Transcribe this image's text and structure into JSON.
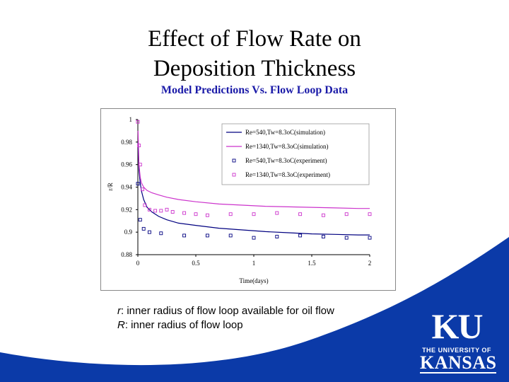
{
  "slide": {
    "title_line1": "Effect of Flow Rate on",
    "title_line2": "Deposition Thickness",
    "subtitle": "Model Predictions Vs. Flow Loop Data",
    "caption_r_symbol": "r",
    "caption_r_text": ": inner radius of flow loop available for oil flow",
    "caption_R_symbol": "R",
    "caption_R_text": ": inner radius of flow loop"
  },
  "logo": {
    "mark": "KU",
    "line1": "THE UNIVERSITY OF",
    "line2": "KANSAS"
  },
  "colors": {
    "swoosh": "#0b3aa8",
    "subtitle": "#1a1aa8",
    "series_re540": "#000080",
    "series_re1340": "#cc33cc"
  },
  "chart_data": {
    "type": "line",
    "xlabel": "Time(days)",
    "ylabel": "r/R",
    "xlim": [
      0,
      2
    ],
    "ylim": [
      0.88,
      1.0
    ],
    "xticks": [
      0,
      0.5,
      1,
      1.5,
      2
    ],
    "xtick_labels": [
      "0",
      "0.5",
      "1",
      "1.5",
      "2"
    ],
    "yticks": [
      0.88,
      0.9,
      0.92,
      0.94,
      0.96,
      0.98,
      1
    ],
    "ytick_labels": [
      "0.88",
      "0.9",
      "0.92",
      "0.94",
      "0.96",
      "0.98",
      "1"
    ],
    "legend_position": "top-right",
    "series": [
      {
        "name": "Re=540,Tw=8.3oC(simulation)",
        "style": "line",
        "color": "#000080",
        "x": [
          0.002,
          0.01,
          0.02,
          0.03,
          0.05,
          0.08,
          0.12,
          0.18,
          0.25,
          0.35,
          0.5,
          0.7,
          0.9,
          1.1,
          1.3,
          1.5,
          1.7,
          1.9,
          2.0
        ],
        "y": [
          0.98,
          0.955,
          0.944,
          0.937,
          0.929,
          0.922,
          0.918,
          0.914,
          0.911,
          0.908,
          0.906,
          0.9035,
          0.902,
          0.9005,
          0.8995,
          0.8985,
          0.898,
          0.8975,
          0.8975
        ]
      },
      {
        "name": "Re=1340,Tw=8.3oC(simulation)",
        "style": "line",
        "color": "#cc33cc",
        "x": [
          0.002,
          0.01,
          0.02,
          0.03,
          0.05,
          0.08,
          0.12,
          0.18,
          0.25,
          0.35,
          0.5,
          0.7,
          0.9,
          1.1,
          1.3,
          1.5,
          1.7,
          1.9,
          2.0
        ],
        "y": [
          0.99,
          0.96,
          0.949,
          0.944,
          0.94,
          0.937,
          0.935,
          0.933,
          0.931,
          0.929,
          0.927,
          0.925,
          0.924,
          0.923,
          0.9225,
          0.922,
          0.9215,
          0.921,
          0.921
        ]
      },
      {
        "name": "Re=540,Tw=8.3oC(experiment)",
        "style": "marker",
        "color": "#000080",
        "x": [
          0.0,
          0.02,
          0.05,
          0.1,
          0.2,
          0.4,
          0.6,
          0.8,
          1.0,
          1.2,
          1.4,
          1.6,
          1.8,
          2.0
        ],
        "y": [
          0.943,
          0.911,
          0.903,
          0.9,
          0.899,
          0.897,
          0.897,
          0.897,
          0.895,
          0.896,
          0.897,
          0.896,
          0.895,
          0.895
        ]
      },
      {
        "name": "Re=1340,Tw=8.3oC(experiment)",
        "style": "marker",
        "color": "#cc33cc",
        "x": [
          0.0,
          0.01,
          0.02,
          0.04,
          0.06,
          0.1,
          0.15,
          0.2,
          0.25,
          0.3,
          0.4,
          0.5,
          0.6,
          0.8,
          1.0,
          1.2,
          1.4,
          1.6,
          1.8,
          2.0
        ],
        "y": [
          0.998,
          0.977,
          0.96,
          0.938,
          0.924,
          0.92,
          0.919,
          0.919,
          0.92,
          0.918,
          0.917,
          0.916,
          0.915,
          0.916,
          0.916,
          0.917,
          0.916,
          0.915,
          0.916,
          0.916
        ]
      }
    ]
  }
}
